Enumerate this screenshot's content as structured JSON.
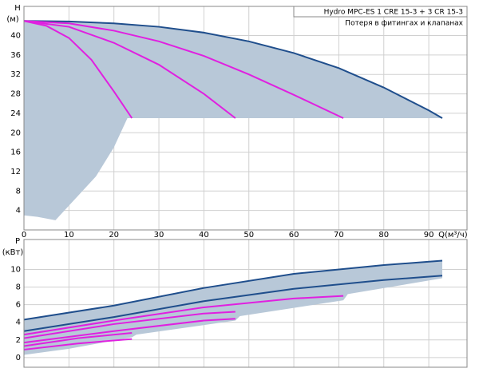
{
  "chart_data": [
    {
      "type": "line",
      "title": "Hydro MPC-ES 1 CRE 15-3  +  3 CR 15-3",
      "subtitle": "Потеря в фитингах и клапанах",
      "y_label": "H",
      "y_unit": "(м)",
      "x_label": "Q(м³/ч)",
      "xlim": [
        0,
        98.5
      ],
      "ylim": [
        0,
        46
      ],
      "grid": true,
      "xticks": [
        0,
        10,
        20,
        30,
        40,
        50,
        60,
        70,
        80,
        90
      ],
      "yticks": [
        4,
        8,
        12,
        16,
        20,
        24,
        28,
        32,
        36,
        40
      ],
      "region": {
        "color": "#b8c8d8",
        "x": [
          0,
          10,
          20,
          30,
          40,
          50,
          60,
          70,
          80,
          90,
          93,
          25,
          23,
          20,
          16,
          11,
          7,
          3,
          0
        ],
        "values": [
          43,
          42.9,
          42.5,
          41.8,
          40.6,
          38.8,
          36.4,
          33.3,
          29.3,
          24.6,
          23,
          23,
          23,
          17,
          11,
          6,
          2,
          2.7,
          3
        ]
      },
      "series": [
        {
          "color": "#1f4e8c",
          "x": [
            0,
            10,
            20,
            30,
            40,
            50,
            60,
            70,
            80,
            90,
            93
          ],
          "values": [
            43,
            42.9,
            42.5,
            41.8,
            40.6,
            38.8,
            36.4,
            33.3,
            29.3,
            24.6,
            23
          ]
        },
        {
          "color": "#e020e0",
          "x": [
            0,
            5,
            10,
            15,
            20,
            24
          ],
          "values": [
            43,
            42,
            39.5,
            35,
            28.5,
            23
          ]
        },
        {
          "color": "#e020e0",
          "x": [
            0,
            10,
            20,
            30,
            40,
            47
          ],
          "values": [
            43,
            41.8,
            38.5,
            34,
            28,
            23
          ]
        },
        {
          "color": "#e020e0",
          "x": [
            0,
            10,
            20,
            30,
            40,
            50,
            60,
            71
          ],
          "values": [
            43,
            42.5,
            41,
            38.8,
            35.8,
            32,
            27.8,
            23
          ]
        }
      ]
    },
    {
      "type": "line",
      "y_label": "P",
      "y_unit": "(кВт)",
      "xlim": [
        0,
        98.5
      ],
      "ylim": [
        -1.1,
        13.4
      ],
      "grid": true,
      "xticks": [
        0,
        10,
        20,
        30,
        40,
        50,
        60,
        70,
        80,
        90
      ],
      "yticks": [
        0,
        2,
        4,
        6,
        8,
        10
      ],
      "region": {
        "color": "#b8c8d8",
        "x": [
          0,
          20,
          40,
          60,
          80,
          93,
          93,
          72,
          71,
          48,
          47,
          25,
          24,
          10,
          0
        ],
        "values": [
          4.3,
          5.9,
          7.9,
          9.5,
          10.5,
          11,
          9,
          7.2,
          6.5,
          4.7,
          4.2,
          2.6,
          2.3,
          1,
          0.3
        ]
      },
      "series": [
        {
          "color": "#1f4e8c",
          "x": [
            0,
            20,
            40,
            60,
            80,
            93
          ],
          "values": [
            4.3,
            5.9,
            7.9,
            9.5,
            10.5,
            11
          ]
        },
        {
          "color": "#1f4e8c",
          "x": [
            0,
            20,
            40,
            60,
            80,
            93
          ],
          "values": [
            3,
            4.6,
            6.4,
            7.8,
            8.8,
            9.3
          ]
        },
        {
          "color": "#e020e0",
          "x": [
            0,
            20,
            40,
            60,
            71
          ],
          "values": [
            2.6,
            4.2,
            5.7,
            6.7,
            7
          ]
        },
        {
          "color": "#e020e0",
          "x": [
            0,
            20,
            40,
            47
          ],
          "values": [
            2.2,
            3.8,
            5,
            5.2
          ]
        },
        {
          "color": "#e020e0",
          "x": [
            0,
            20,
            40,
            47
          ],
          "values": [
            1.7,
            3,
            4.2,
            4.4
          ]
        },
        {
          "color": "#e020e0",
          "x": [
            0,
            12,
            24
          ],
          "values": [
            1.3,
            2.2,
            2.8
          ]
        },
        {
          "color": "#e020e0",
          "x": [
            0,
            12,
            24
          ],
          "values": [
            0.9,
            1.6,
            2.1
          ]
        }
      ]
    }
  ]
}
